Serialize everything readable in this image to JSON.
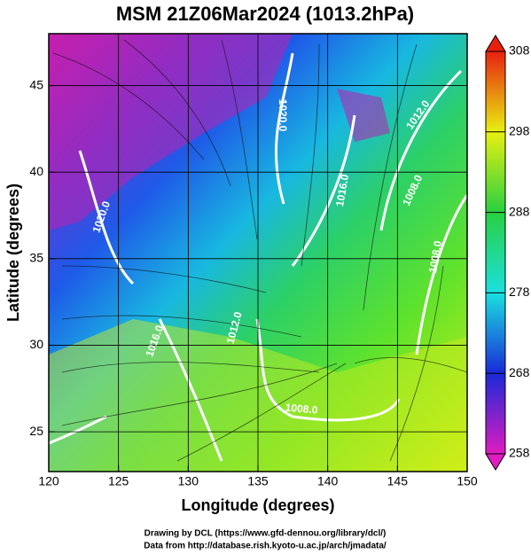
{
  "title": "MSM 21Z06Mar2024 (1013.2hPa)",
  "axes": {
    "xlabel": "Longitude (degrees)",
    "xlim": [
      120,
      150
    ],
    "xticks": [
      120,
      125,
      130,
      135,
      140,
      145,
      150
    ],
    "ylabel": "Latitude  (degrees)",
    "ylim": [
      22.7,
      48
    ],
    "yticks": [
      25,
      30,
      35,
      40,
      45
    ]
  },
  "colorbar": {
    "lim": [
      258,
      308
    ],
    "ticks": [
      258,
      268,
      278,
      288,
      298,
      308
    ]
  },
  "contour_labels": [
    "1020.0",
    "1020.0",
    "1016.0",
    "1012.0",
    "1008.0",
    "1012.0",
    "1016.0",
    "1008.0",
    "1008.0"
  ],
  "footer": [
    "Drawing by DCL (https://www.gfd-dennou.org/library/dcl/)",
    "Data from http://database.rish.kyoto-u.ac.jp/arch/jmadata/"
  ]
}
